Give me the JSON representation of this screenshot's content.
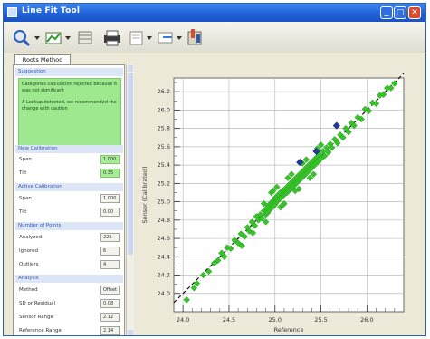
{
  "window": {
    "title": "Line Fit Tool",
    "controls": {
      "minimize": "_",
      "maximize": "□",
      "close": "✕"
    }
  },
  "toolbar": {
    "icons": [
      "zoom-icon",
      "dropdown-arrow-icon",
      "chart-icon",
      "dropdown-arrow-icon",
      "table-icon",
      "print-icon",
      "page-icon",
      "dropdown-arrow-icon",
      "export-icon",
      "dropdown-arrow-icon",
      "settings-icon"
    ]
  },
  "tabs": [
    {
      "label": "Roots  Method",
      "active": true
    }
  ],
  "panel": {
    "suggestion": {
      "title": "Suggestion",
      "line1": "Categories calculation rejected because it was not significant",
      "line2": "A Lookup detected, we recommended the change with caution"
    },
    "new_calibration": {
      "title": "New Calibration",
      "rows": [
        {
          "label": "Span",
          "value": "1.000"
        },
        {
          "label": "Tilt",
          "value": "0.35"
        }
      ]
    },
    "active_calibration": {
      "title": "Active Calibration",
      "rows": [
        {
          "label": "Span",
          "value": "1.000"
        },
        {
          "label": "Tilt",
          "value": "0.00"
        }
      ]
    },
    "points": {
      "title": "Number of Points",
      "rows": [
        {
          "label": "Analyzed",
          "value": "225"
        },
        {
          "label": "Ignored",
          "value": "6"
        },
        {
          "label": "Outliers",
          "value": "4"
        }
      ]
    },
    "analysis": {
      "title": "Analysis",
      "rows": [
        {
          "label": "Method",
          "value": "Offset"
        },
        {
          "label": "SD or Residual",
          "value": "0.08"
        },
        {
          "label": "Sensor Range",
          "value": "2.12"
        },
        {
          "label": "Reference Range",
          "value": "2.14"
        }
      ]
    }
  },
  "chart_data": {
    "type": "scatter",
    "xlabel": "Reference",
    "ylabel": "Sensor  (Calibrated)",
    "xlim": [
      23.9,
      26.4
    ],
    "ylim": [
      23.8,
      26.35
    ],
    "x_ticks": [
      "24.0",
      "24.5",
      "25.0",
      "25.5",
      "26.0"
    ],
    "x_tick_values": [
      24.0,
      24.5,
      25.0,
      25.5,
      26.0
    ],
    "y_ticks": [
      "24.0",
      "24.2",
      "24.4",
      "24.6",
      "24.8",
      "25.0",
      "25.2",
      "25.4",
      "25.6",
      "25.8",
      "26.0",
      "26.2"
    ],
    "y_tick_values": [
      24.0,
      24.2,
      24.4,
      24.6,
      24.8,
      25.0,
      25.2,
      25.4,
      25.6,
      25.8,
      26.0,
      26.2
    ],
    "grid": true,
    "fit_line": {
      "slope": 1.0,
      "intercept": 0.0,
      "style": "dashed"
    },
    "series": [
      {
        "color": "#37c42a",
        "points": [
          [
            24.04,
            23.93
          ],
          [
            24.12,
            24.06
          ],
          [
            24.15,
            24.11
          ],
          [
            24.22,
            24.2
          ],
          [
            24.28,
            24.24
          ],
          [
            24.34,
            24.33
          ],
          [
            24.38,
            24.36
          ],
          [
            24.42,
            24.44
          ],
          [
            24.45,
            24.4
          ],
          [
            24.48,
            24.5
          ],
          [
            24.52,
            24.49
          ],
          [
            24.56,
            24.58
          ],
          [
            24.6,
            24.55
          ],
          [
            24.63,
            24.65
          ],
          [
            24.67,
            24.62
          ],
          [
            24.7,
            24.72
          ],
          [
            24.72,
            24.68
          ],
          [
            24.75,
            24.78
          ],
          [
            24.78,
            24.74
          ],
          [
            24.8,
            24.84
          ],
          [
            24.82,
            24.8
          ],
          [
            24.84,
            24.86
          ],
          [
            24.86,
            24.82
          ],
          [
            24.88,
            24.9
          ],
          [
            24.9,
            24.86
          ],
          [
            24.91,
            24.93
          ],
          [
            24.92,
            24.88
          ],
          [
            24.93,
            24.96
          ],
          [
            24.94,
            24.91
          ],
          [
            24.95,
            24.98
          ],
          [
            24.96,
            24.93
          ],
          [
            24.97,
            25.0
          ],
          [
            24.98,
            24.95
          ],
          [
            24.99,
            25.02
          ],
          [
            25.0,
            24.97
          ],
          [
            25.0,
            25.04
          ],
          [
            25.01,
            25.0
          ],
          [
            25.02,
            25.06
          ],
          [
            25.03,
            25.01
          ],
          [
            25.04,
            25.08
          ],
          [
            25.05,
            25.03
          ],
          [
            25.06,
            25.1
          ],
          [
            25.07,
            25.05
          ],
          [
            25.08,
            25.12
          ],
          [
            25.09,
            25.07
          ],
          [
            25.1,
            25.13
          ],
          [
            25.11,
            25.09
          ],
          [
            25.12,
            25.15
          ],
          [
            25.13,
            25.1
          ],
          [
            25.14,
            25.17
          ],
          [
            25.15,
            25.12
          ],
          [
            25.16,
            25.19
          ],
          [
            25.17,
            25.14
          ],
          [
            25.18,
            25.21
          ],
          [
            25.19,
            25.16
          ],
          [
            25.2,
            25.23
          ],
          [
            25.21,
            25.18
          ],
          [
            25.22,
            25.25
          ],
          [
            25.23,
            25.2
          ],
          [
            25.24,
            25.27
          ],
          [
            25.25,
            25.22
          ],
          [
            25.26,
            25.29
          ],
          [
            25.27,
            25.24
          ],
          [
            25.28,
            25.31
          ],
          [
            25.29,
            25.26
          ],
          [
            25.3,
            25.33
          ],
          [
            25.31,
            25.28
          ],
          [
            25.32,
            25.35
          ],
          [
            25.33,
            25.3
          ],
          [
            25.34,
            25.37
          ],
          [
            25.35,
            25.32
          ],
          [
            25.36,
            25.39
          ],
          [
            25.37,
            25.34
          ],
          [
            25.38,
            25.41
          ],
          [
            25.39,
            25.36
          ],
          [
            25.4,
            25.43
          ],
          [
            25.41,
            25.38
          ],
          [
            25.42,
            25.45
          ],
          [
            25.43,
            25.4
          ],
          [
            25.44,
            25.47
          ],
          [
            25.45,
            25.42
          ],
          [
            25.46,
            25.49
          ],
          [
            25.47,
            25.44
          ],
          [
            25.48,
            25.51
          ],
          [
            25.5,
            25.47
          ],
          [
            25.52,
            25.55
          ],
          [
            25.54,
            25.5
          ],
          [
            25.56,
            25.59
          ],
          [
            25.58,
            25.54
          ],
          [
            25.6,
            25.63
          ],
          [
            25.62,
            25.59
          ],
          [
            25.65,
            25.68
          ],
          [
            25.68,
            25.64
          ],
          [
            25.71,
            25.73
          ],
          [
            25.74,
            25.7
          ],
          [
            25.77,
            25.8
          ],
          [
            25.8,
            25.76
          ],
          [
            25.83,
            25.86
          ],
          [
            25.86,
            25.83
          ],
          [
            25.9,
            25.92
          ],
          [
            25.94,
            25.9
          ],
          [
            25.98,
            26.01
          ],
          [
            26.02,
            25.99
          ],
          [
            26.06,
            26.08
          ],
          [
            26.1,
            26.07
          ],
          [
            26.14,
            26.16
          ],
          [
            26.18,
            26.17
          ],
          [
            26.22,
            26.24
          ],
          [
            26.26,
            26.24
          ],
          [
            26.3,
            26.29
          ],
          [
            24.64,
            24.52
          ],
          [
            24.76,
            24.66
          ],
          [
            24.88,
            24.98
          ],
          [
            25.02,
            25.16
          ],
          [
            25.1,
            24.98
          ],
          [
            25.18,
            25.3
          ],
          [
            25.26,
            25.14
          ],
          [
            25.34,
            25.46
          ],
          [
            25.42,
            25.3
          ],
          [
            25.5,
            25.62
          ],
          [
            25.06,
            24.94
          ],
          [
            24.96,
            25.1
          ],
          [
            25.14,
            25.26
          ],
          [
            25.22,
            25.12
          ],
          [
            25.3,
            25.42
          ],
          [
            25.38,
            25.26
          ],
          [
            25.46,
            25.58
          ],
          [
            24.9,
            24.78
          ],
          [
            24.98,
            25.12
          ],
          [
            25.08,
            24.96
          ]
        ]
      },
      {
        "color": "#1f3a8f",
        "points": [
          [
            25.27,
            25.43
          ],
          [
            25.45,
            25.55
          ],
          [
            25.67,
            25.83
          ]
        ]
      }
    ]
  }
}
